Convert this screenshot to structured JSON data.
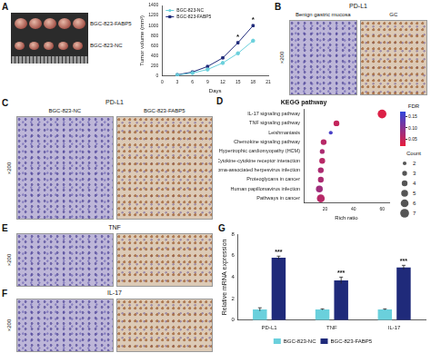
{
  "chart_data": [
    {
      "panel": "A",
      "type": "line",
      "x_label": "Days",
      "y_label": "Tumor volume (mm³)",
      "x": [
        3,
        6,
        9,
        12,
        15,
        18
      ],
      "series": [
        {
          "name": "BGC-823-NC",
          "color": "#6ad0dc",
          "marker": "circle",
          "values": [
            20,
            60,
            130,
            260,
            450,
            700
          ]
        },
        {
          "name": "BGC-823-FABP5",
          "color": "#1f2a7a",
          "marker": "square",
          "values": [
            25,
            80,
            190,
            360,
            660,
            1000
          ]
        }
      ],
      "xlim": [
        0,
        21
      ],
      "xticks": [
        0,
        3,
        6,
        9,
        12,
        15,
        18,
        21
      ],
      "ylim": [
        0,
        1400
      ],
      "yticks": [
        0,
        200,
        400,
        600,
        800,
        1000,
        1200,
        1400
      ],
      "grid": false,
      "legend": "upper left",
      "annotations": [
        {
          "x": 15,
          "text": "*"
        },
        {
          "x": 18,
          "text": "*"
        }
      ]
    },
    {
      "panel": "D",
      "type": "scatter",
      "title": "KEGG pathway",
      "x_label": "Rich ratio",
      "categories": [
        "IL-17 signaling pathway",
        "TNF signaling pathway",
        "Leishmaniasis",
        "Chemokine signaling pathway",
        "Hypertrophic cardiomyopathy (HCM)",
        "Cytokine-cytokine receptor interaction",
        "Kaposi sarcoma-associated herpesvirus infection",
        "Proteoglycans in cancer",
        "Human papillomavirus infection",
        "Pathways in cancer"
      ],
      "values": [
        60,
        28,
        24,
        19,
        18,
        18,
        17,
        17,
        16,
        17
      ],
      "counts": [
        7,
        4,
        2,
        4,
        3,
        4,
        4,
        4,
        5,
        6
      ],
      "fdr": [
        0.03,
        0.05,
        0.15,
        0.06,
        0.07,
        0.06,
        0.07,
        0.07,
        0.08,
        0.06
      ],
      "xlim": [
        5,
        65
      ],
      "xticks": [
        20,
        40,
        60
      ],
      "grid": false,
      "colorbar": {
        "title": "FDR",
        "range": [
          0.02,
          0.17
        ],
        "ticks": [
          0.15,
          {
            "value": 0.1,
            "label": "0.10"
          },
          0.05
        ]
      },
      "size_legend": {
        "title": "Count",
        "values": [
          2,
          3,
          4,
          5,
          6,
          7
        ]
      }
    },
    {
      "panel": "G",
      "type": "bar",
      "y_label": "Relative mRNA expression",
      "categories": [
        "PD-L1",
        "TNF",
        "IL-17"
      ],
      "series": [
        {
          "name": "BGC-823-NC",
          "color": "#6ad0dc",
          "values": [
            1,
            1,
            1
          ],
          "errors": [
            0.15,
            0.05,
            0.05
          ]
        },
        {
          "name": "BGC-823-FABP5",
          "color": "#1f2a7a",
          "values": [
            5.8,
            3.7,
            4.9
          ],
          "errors": [
            0.15,
            0.3,
            0.2
          ]
        }
      ],
      "ylim": [
        0,
        8
      ],
      "yticks": [
        0,
        2,
        4,
        6,
        8
      ],
      "grid": false,
      "legend": "bottom",
      "annotations": [
        {
          "category": "PD-L1",
          "series": "BGC-823-FABP5",
          "text": "***"
        },
        {
          "category": "TNF",
          "series": "BGC-823-FABP5",
          "text": "***"
        },
        {
          "category": "IL-17",
          "series": "BGC-823-FABP5",
          "text": "***"
        }
      ]
    }
  ],
  "image_panels": [
    {
      "panel": "A",
      "labels": [
        "BGC-823-FABP5",
        "BGC-823-NC"
      ]
    },
    {
      "panel": "B",
      "title": "PD-L1",
      "labels": [
        "Benign gastric mucosa",
        "GC"
      ],
      "magnification": "×200"
    },
    {
      "panel": "C",
      "title": "PD-L1",
      "labels": [
        "BGC-823-NC",
        "BGC-823-FABP5"
      ],
      "magnification": "×200"
    },
    {
      "panel": "E",
      "title": "TNF",
      "magnification": "×200"
    },
    {
      "panel": "F",
      "title": "IL-17",
      "magnification": "×200"
    }
  ]
}
